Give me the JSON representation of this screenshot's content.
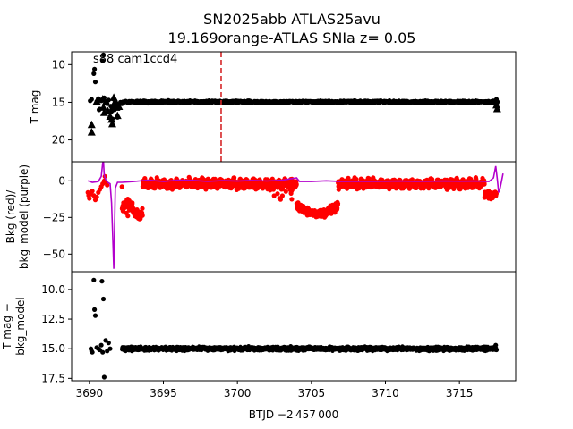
{
  "chart_data": {
    "type": "scatter",
    "title_line1": "SN2025abb  ATLAS25avu",
    "title_line2": "19.169orange-ATLAS SNIa z= 0.05",
    "xlabel": "BTJD −2 457 000",
    "xlim": [
      3688.8,
      3718.8
    ],
    "x_ticks": [
      3690,
      3695,
      3700,
      3705,
      3710,
      3715
    ],
    "x_tick_labels": [
      "3690",
      "3695",
      "3700",
      "3705",
      "3710",
      "3715"
    ],
    "panels": [
      {
        "name": "tmag",
        "ylabel": "T mag",
        "ylabel_lines": [
          "T mag"
        ],
        "ylim": [
          22.9,
          8.3
        ],
        "inverted": true,
        "y_ticks": [
          10,
          15,
          20
        ],
        "y_tick_labels": [
          "10",
          "15",
          "20"
        ],
        "annotation": "s88 cam1ccd4",
        "vline": {
          "x": 3698.9,
          "color": "#d62728",
          "style": "dashed"
        },
        "series": [
          {
            "name": "T mag",
            "color": "#000000",
            "marker": "dot",
            "band": {
              "x_start": 3692.2,
              "x_end": 3717.6,
              "center": 14.95,
              "spread": 0.25
            },
            "early_points": [
              [
                3690.05,
                14.8
              ],
              [
                3690.15,
                14.6
              ],
              [
                3690.3,
                11.2
              ],
              [
                3690.35,
                10.6
              ],
              [
                3690.4,
                12.3
              ],
              [
                3690.5,
                14.9
              ],
              [
                3690.6,
                14.5
              ],
              [
                3690.65,
                16.0
              ],
              [
                3690.7,
                15.9
              ],
              [
                3690.75,
                14.7
              ],
              [
                3690.8,
                14.8
              ],
              [
                3690.9,
                9.5
              ],
              [
                3690.95,
                8.7
              ],
              [
                3691.0,
                14.4
              ],
              [
                3691.1,
                14.9
              ],
              [
                3691.2,
                15.2
              ],
              [
                3691.3,
                14.7
              ],
              [
                3691.45,
                15.5
              ],
              [
                3691.5,
                16.2
              ],
              [
                3691.55,
                17.2
              ],
              [
                3691.65,
                14.6
              ],
              [
                3691.7,
                16.0
              ],
              [
                3691.85,
                15.6
              ],
              [
                3691.9,
                17.0
              ],
              [
                3692.0,
                15.8
              ],
              [
                3692.1,
                15.0
              ],
              [
                3692.2,
                15.2
              ],
              [
                3717.3,
                15.1
              ],
              [
                3717.5,
                14.6
              ]
            ]
          },
          {
            "name": "upper limits",
            "color": "#000000",
            "marker": "triangle",
            "points": [
              [
                3690.15,
                18.0
              ],
              [
                3690.15,
                19.0
              ],
              [
                3690.5,
                14.9
              ],
              [
                3690.9,
                14.6
              ],
              [
                3690.95,
                15.7
              ],
              [
                3691.0,
                16.4
              ],
              [
                3691.1,
                15.0
              ],
              [
                3691.25,
                16.2
              ],
              [
                3691.4,
                16.9
              ],
              [
                3691.5,
                17.3
              ],
              [
                3691.55,
                17.9
              ],
              [
                3691.6,
                15.6
              ],
              [
                3691.65,
                14.4
              ],
              [
                3691.7,
                15.1
              ],
              [
                3691.8,
                15.7
              ],
              [
                3691.85,
                15.2
              ],
              [
                3691.9,
                16.8
              ],
              [
                3692.0,
                15.6
              ],
              [
                3717.5,
                15.4
              ],
              [
                3717.55,
                15.9
              ]
            ]
          }
        ]
      },
      {
        "name": "bkg",
        "ylabel": "Bkg (red)/ bkg_model (purple)",
        "ylabel_lines": [
          "Bkg (red)/",
          "bkg_model (purple)"
        ],
        "ylim": [
          -62,
          13
        ],
        "inverted": false,
        "y_ticks": [
          0,
          -25,
          -50
        ],
        "y_tick_labels": [
          "0",
          "−25",
          "−50"
        ],
        "series": [
          {
            "name": "Bkg",
            "color": "#ff0000",
            "marker": "dot",
            "band": {
              "x_start": 3692.2,
              "x_end": 3717.5
            },
            "early_points": [
              [
                3689.9,
                -8
              ],
              [
                3689.95,
                -10
              ],
              [
                3690.0,
                -12
              ],
              [
                3690.1,
                -9
              ],
              [
                3690.2,
                -7
              ],
              [
                3690.3,
                -10
              ],
              [
                3690.4,
                -13
              ],
              [
                3690.5,
                -11
              ],
              [
                3690.6,
                -8
              ],
              [
                3690.7,
                -6
              ],
              [
                3690.8,
                -4
              ],
              [
                3690.9,
                -2
              ],
              [
                3691.0,
                0
              ],
              [
                3691.05,
                3
              ],
              [
                3691.1,
                -1
              ],
              [
                3691.2,
                -3
              ],
              [
                3692.3,
                -15
              ],
              [
                3692.4,
                -18
              ],
              [
                3692.5,
                -22
              ],
              [
                3692.6,
                -24
              ],
              [
                3692.7,
                -20
              ],
              [
                3692.8,
                -17
              ],
              [
                3692.9,
                -15
              ]
            ]
          },
          {
            "name": "bkg_model",
            "color": "#b300cc",
            "line": true,
            "points": [
              [
                3689.9,
                0
              ],
              [
                3690.2,
                -1
              ],
              [
                3690.6,
                -0.5
              ],
              [
                3690.8,
                3
              ],
              [
                3690.9,
                12
              ],
              [
                3690.95,
                14
              ],
              [
                3691.0,
                4
              ],
              [
                3691.1,
                1
              ],
              [
                3691.25,
                -1
              ],
              [
                3691.4,
                -2
              ],
              [
                3691.5,
                -15
              ],
              [
                3691.6,
                -45
              ],
              [
                3691.65,
                -60
              ],
              [
                3691.7,
                -35
              ],
              [
                3691.75,
                -5
              ],
              [
                3691.9,
                -1
              ],
              [
                3692.2,
                -1
              ],
              [
                3693,
                -0.5
              ],
              [
                3694,
                0.5
              ],
              [
                3695,
                -0.5
              ],
              [
                3696,
                0.5
              ],
              [
                3697,
                0.3
              ],
              [
                3698,
                -0.4
              ],
              [
                3699,
                0.2
              ],
              [
                3700,
                -0.2
              ],
              [
                3701,
                0.3
              ],
              [
                3702,
                -0.1
              ],
              [
                3703,
                0.4
              ],
              [
                3704,
                2
              ],
              [
                3704.2,
                -0.5
              ],
              [
                3705,
                -0.5
              ],
              [
                3706,
                0
              ],
              [
                3707,
                -0.5
              ],
              [
                3708,
                -0.3
              ],
              [
                3709,
                -0.4
              ],
              [
                3710,
                -0.3
              ],
              [
                3711,
                -0.2
              ],
              [
                3712,
                -0.4
              ],
              [
                3713,
                -0.3
              ],
              [
                3714,
                -0.2
              ],
              [
                3715,
                -0.3
              ],
              [
                3716,
                -0.2
              ],
              [
                3717,
                -0.5
              ],
              [
                3717.3,
                2
              ],
              [
                3717.45,
                10
              ],
              [
                3717.55,
                2
              ],
              [
                3717.65,
                -8
              ],
              [
                3717.75,
                -5
              ],
              [
                3717.85,
                0
              ],
              [
                3717.95,
                5
              ]
            ]
          }
        ]
      },
      {
        "name": "diff",
        "ylabel": "T mag − bkg_model",
        "ylabel_lines": [
          "T mag −",
          "bkg_model"
        ],
        "ylim": [
          17.7,
          8.5
        ],
        "inverted": true,
        "y_ticks": [
          10.0,
          12.5,
          15.0,
          17.5
        ],
        "y_tick_labels": [
          "10.0",
          "12.5",
          "15.0",
          "17.5"
        ],
        "series": [
          {
            "name": "T mag - bkg_model",
            "color": "#000000",
            "marker": "dot",
            "band": {
              "x_start": 3692.2,
              "x_end": 3717.5,
              "center": 15.0,
              "spread": 0.25
            },
            "early_points": [
              [
                3690.1,
                15.0
              ],
              [
                3690.15,
                15.2
              ],
              [
                3690.2,
                15.3
              ],
              [
                3690.3,
                9.2
              ],
              [
                3690.35,
                11.7
              ],
              [
                3690.4,
                12.2
              ],
              [
                3690.5,
                14.9
              ],
              [
                3690.6,
                15.0
              ],
              [
                3690.7,
                15.1
              ],
              [
                3690.8,
                14.7
              ],
              [
                3690.85,
                9.3
              ],
              [
                3690.9,
                15.3
              ],
              [
                3690.95,
                10.8
              ],
              [
                3691.0,
                17.4
              ],
              [
                3691.1,
                14.3
              ],
              [
                3691.2,
                15.2
              ],
              [
                3691.3,
                14.5
              ],
              [
                3691.4,
                15.0
              ],
              [
                3717.3,
                14.9
              ],
              [
                3717.45,
                14.7
              ],
              [
                3717.5,
                15.1
              ]
            ]
          }
        ]
      }
    ]
  }
}
